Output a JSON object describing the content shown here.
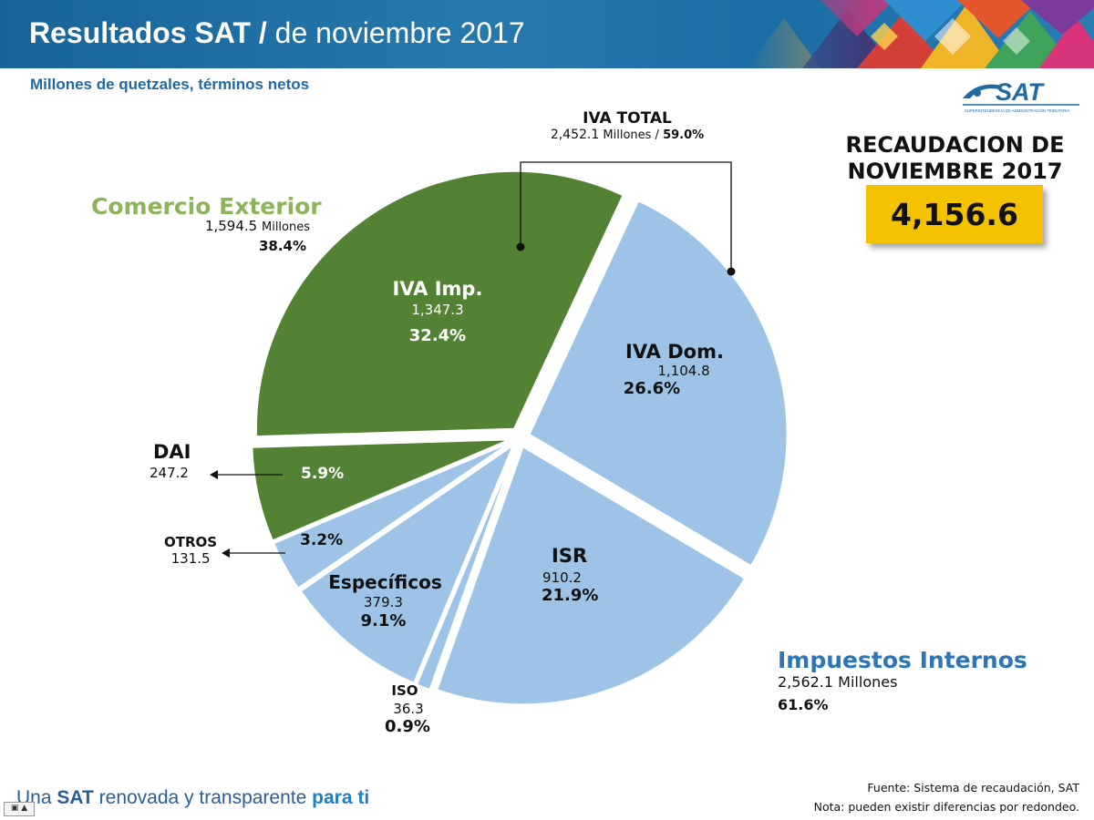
{
  "header": {
    "title_bold": "Resultados SAT /",
    "title_rest": " de noviembre 2017"
  },
  "subtitle": "Millones de quetzales, términos netos",
  "logo": {
    "text": "SAT",
    "tagline": "SUPERINTENDENCIA DE ADMINISTRACIÓN TRIBUTARIA",
    "icon": "sat-logo-icon"
  },
  "total_box": {
    "title_line1": "RECAUDACION DE",
    "title_line2": "NOVIEMBRE 2017",
    "value": "4,156.6"
  },
  "chart_data": {
    "type": "pie",
    "title": "Resultados SAT / de noviembre 2017",
    "subtitle": "Millones de quetzales, términos netos",
    "unit": "Millones de quetzales",
    "slices": [
      {
        "name": "IVA Imp.",
        "value": 1347.3,
        "value_label": "1,347.3",
        "percent": 32.4,
        "percent_label": "32.4%",
        "group": "Comercio Exterior",
        "color": "#548235"
      },
      {
        "name": "IVA Dom.",
        "value": 1104.8,
        "value_label": "1,104.8",
        "percent": 26.6,
        "percent_label": "26.6%",
        "group": "Impuestos Internos",
        "color": "#9dc3e6"
      },
      {
        "name": "ISR",
        "value": 910.2,
        "value_label": "910.2",
        "percent": 21.9,
        "percent_label": "21.9%",
        "group": "Impuestos Internos",
        "color": "#9dc3e6"
      },
      {
        "name": "ISO",
        "value": 36.3,
        "value_label": "36.3",
        "percent": 0.9,
        "percent_label": "0.9%",
        "group": "Impuestos Internos",
        "color": "#9dc3e6"
      },
      {
        "name": "Específicos",
        "value": 379.3,
        "value_label": "379.3",
        "percent": 9.1,
        "percent_label": "9.1%",
        "group": "Impuestos Internos",
        "color": "#9dc3e6"
      },
      {
        "name": "OTROS",
        "value": 131.5,
        "value_label": "131.5",
        "percent": 3.2,
        "percent_label": "3.2%",
        "group": "Impuestos Internos",
        "color": "#9dc3e6"
      },
      {
        "name": "DAI",
        "value": 247.2,
        "value_label": "247.2",
        "percent": 5.9,
        "percent_label": "5.9%",
        "group": "Comercio Exterior",
        "color": "#548235"
      }
    ],
    "groups": [
      {
        "name": "Comercio Exterior",
        "amount": "1,594.5",
        "unit": "Millones",
        "percent_label": "38.4%",
        "color": "#8db45a"
      },
      {
        "name": "Impuestos Internos",
        "amount": "2,562.1",
        "unit": "Millones",
        "percent_label": "61.6%",
        "color": "#2e75b6"
      }
    ],
    "iva_total": {
      "title": "IVA TOTAL",
      "amount": "2,452.1",
      "unit": "Millones",
      "sep": " / ",
      "percent_label": "59.0%"
    }
  },
  "footer": {
    "slogan_pre": "Una ",
    "slogan_sat": "SAT",
    "slogan_mid": " renovada y transparente ",
    "slogan_end": "para ti",
    "source": "Fuente: Sistema de recaudación, SAT",
    "note": "Nota: pueden existir diferencias por redondeo."
  }
}
